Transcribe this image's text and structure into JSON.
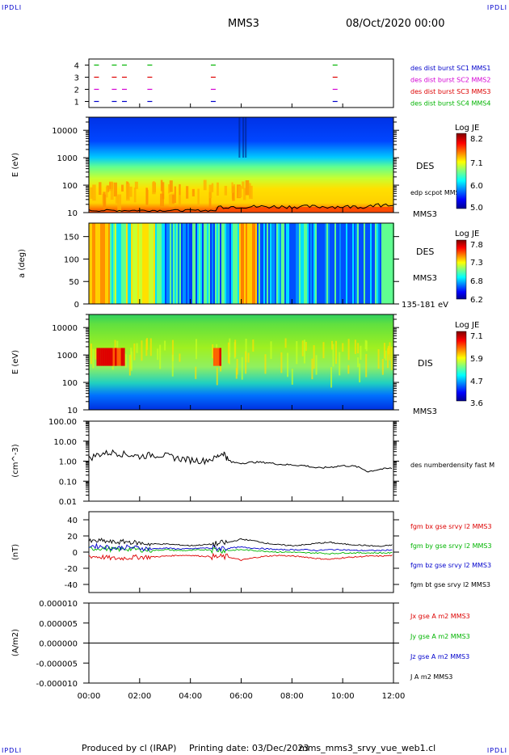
{
  "header": {
    "corner_tl": "IPDLI",
    "corner_tr": "IPDLI",
    "corner_bl": "IPDLI",
    "corner_br": "IPDLI",
    "spacecraft": "MMS3",
    "datetime": "08/Oct/2020 00:00"
  },
  "footer": {
    "produced": "Produced by cl (IRAP)",
    "printing": "Printing date: 03/Dec/2023",
    "file": "mms_mms3_srvy_vue_web1.cl"
  },
  "colors": {
    "mms1": "#0000cc",
    "mms2": "#d400d4",
    "mms3": "#dd0000",
    "mms4": "#00b400",
    "bx": "#dd0000",
    "by": "#00b400",
    "bz": "#0000cc",
    "bt": "#000000"
  },
  "chart_data": [
    {
      "type": "scatter",
      "title": "",
      "ylim": [
        0.5,
        4.5
      ],
      "yticks": [
        "1",
        "2",
        "3",
        "4"
      ],
      "legend": [
        "des dist burst SC1 MMS1",
        "des dist burst SC2 MMS2",
        "des dist burst SC3 MMS3",
        "des dist burst SC4 MMS4"
      ],
      "series": [
        {
          "name": "des dist burst SC1 MMS1",
          "level": 1,
          "x_hours": [
            0.3,
            1.0,
            1.4,
            2.4,
            4.9,
            9.7
          ]
        },
        {
          "name": "des dist burst SC2 MMS2",
          "level": 2,
          "x_hours": [
            0.3,
            1.0,
            1.4,
            2.4,
            4.9,
            9.7
          ]
        },
        {
          "name": "des dist burst SC3 MMS3",
          "level": 3,
          "x_hours": [
            0.3,
            1.0,
            1.4,
            2.4,
            4.9,
            9.7
          ]
        },
        {
          "name": "des dist burst SC4 MMS4",
          "level": 4,
          "x_hours": [
            0.3,
            1.0,
            1.4,
            2.4,
            4.9,
            9.7
          ]
        }
      ]
    },
    {
      "type": "heatmap",
      "ylabel": "E (eV)",
      "yscale": "log",
      "ylim": [
        10,
        30000
      ],
      "yticks": [
        "10",
        "100",
        "1000",
        "10000"
      ],
      "side_labels": [
        "DES",
        "edp scpot MMS3",
        "MMS3"
      ],
      "colorbar": {
        "label": "Log JE",
        "ticks": [
          "8.2",
          "7.1",
          "6.0",
          "5.0"
        ]
      }
    },
    {
      "type": "heatmap",
      "ylabel": "a (deg)",
      "ylim": [
        0,
        180
      ],
      "yticks": [
        "0",
        "50",
        "100",
        "150"
      ],
      "side_labels": [
        "DES",
        "MMS3",
        "135-181 eV"
      ],
      "colorbar": {
        "label": "Log JE",
        "ticks": [
          "7.8",
          "7.3",
          "6.8",
          "6.2"
        ]
      }
    },
    {
      "type": "heatmap",
      "ylabel": "E (eV)",
      "yscale": "log",
      "ylim": [
        10,
        30000
      ],
      "yticks": [
        "10",
        "100",
        "1000",
        "10000"
      ],
      "side_labels": [
        "DIS",
        "MMS3"
      ],
      "colorbar": {
        "label": "Log JE",
        "ticks": [
          "7.1",
          "5.9",
          "4.7",
          "3.6"
        ]
      }
    },
    {
      "type": "line",
      "ylabel": "(cm^-3)",
      "yscale": "log",
      "ylim": [
        0.01,
        100
      ],
      "yticks": [
        "100.00",
        "10.00",
        "1.00",
        "0.10",
        "0.01"
      ],
      "legend": [
        "des numberdensity fast M"
      ],
      "x": [
        0,
        0.5,
        1.0,
        1.5,
        2.0,
        2.5,
        3.0,
        3.5,
        4.0,
        4.5,
        5.0,
        5.3,
        5.5,
        6.0,
        6.5,
        7.0,
        7.5,
        8.0,
        8.5,
        9.0,
        9.5,
        10.0,
        10.5,
        11.0,
        11.5,
        12.0
      ],
      "series": [
        {
          "name": "des numberdensity fast M",
          "values": [
            1.3,
            2.2,
            2.6,
            2.0,
            1.6,
            2.0,
            1.8,
            1.3,
            1.1,
            1.0,
            1.3,
            2.5,
            0.9,
            0.8,
            0.9,
            0.85,
            0.7,
            0.65,
            0.6,
            0.45,
            0.5,
            0.6,
            0.55,
            0.3,
            0.4,
            0.45
          ]
        }
      ]
    },
    {
      "type": "line",
      "ylabel": "(nT)",
      "ylim": [
        -50,
        50
      ],
      "yticks": [
        "40",
        "20",
        "0",
        "-20",
        "-40"
      ],
      "legend": [
        "fgm bx gse srvy l2 MMS3",
        "fgm by gse srvy l2 MMS3",
        "fgm bz gse srvy l2 MMS3",
        "fgm bt gse srvy l2 MMS3"
      ],
      "x": [
        0,
        0.5,
        1.0,
        1.5,
        2.0,
        2.5,
        3.0,
        3.5,
        4.0,
        4.5,
        5.0,
        5.5,
        6.0,
        6.5,
        7.0,
        7.5,
        8.0,
        8.5,
        9.0,
        9.5,
        10.0,
        10.5,
        11.0,
        11.5,
        12.0
      ],
      "series": [
        {
          "name": "fgm bx gse srvy l2 MMS3",
          "values": [
            -5,
            -6,
            -8,
            -7,
            -6,
            -6,
            -5,
            -4,
            -4,
            -5,
            -6,
            -6,
            -10,
            -7,
            -5,
            -4,
            -5,
            -6,
            -8,
            -9,
            -7,
            -6,
            -5,
            -5,
            -4
          ]
        },
        {
          "name": "fgm by gse srvy l2 MMS3",
          "values": [
            4,
            5,
            3,
            4,
            3,
            2,
            3,
            2,
            2,
            3,
            3,
            2,
            3,
            2,
            1,
            0,
            0,
            -1,
            -1,
            -2,
            -1,
            -1,
            -1,
            -1,
            -1
          ]
        },
        {
          "name": "fgm bz gse srvy l2 MMS3",
          "values": [
            8,
            7,
            5,
            6,
            5,
            4,
            5,
            4,
            4,
            5,
            5,
            5,
            6,
            5,
            4,
            3,
            3,
            3,
            2,
            3,
            3,
            2,
            2,
            2,
            3
          ]
        },
        {
          "name": "fgm bt gse srvy l2 MMS3",
          "values": [
            13,
            14,
            12,
            13,
            11,
            10,
            10,
            9,
            8,
            9,
            10,
            12,
            16,
            14,
            11,
            9,
            8,
            9,
            11,
            12,
            10,
            9,
            8,
            7,
            9
          ]
        }
      ]
    },
    {
      "type": "line",
      "ylabel": "(A/m2)",
      "ylim": [
        -0.0001,
        0.0001
      ],
      "yticks": [
        "0.000010",
        "0.000005",
        "0.000000",
        "-0.000005",
        "-0.000010"
      ],
      "legend": [
        "Jx gse A m2 MMS3",
        "Jy gse A m2 MMS3",
        "Jz gse A m2 MMS3",
        "J A m2 MMS3"
      ],
      "x": [
        0,
        12
      ],
      "series": [
        {
          "name": "J A m2 MMS3",
          "values": [
            0,
            0
          ]
        }
      ]
    }
  ],
  "x_axis": {
    "ticks": [
      "00:00",
      "02:00",
      "04:00",
      "06:00",
      "08:00",
      "10:00",
      "12:00"
    ]
  }
}
